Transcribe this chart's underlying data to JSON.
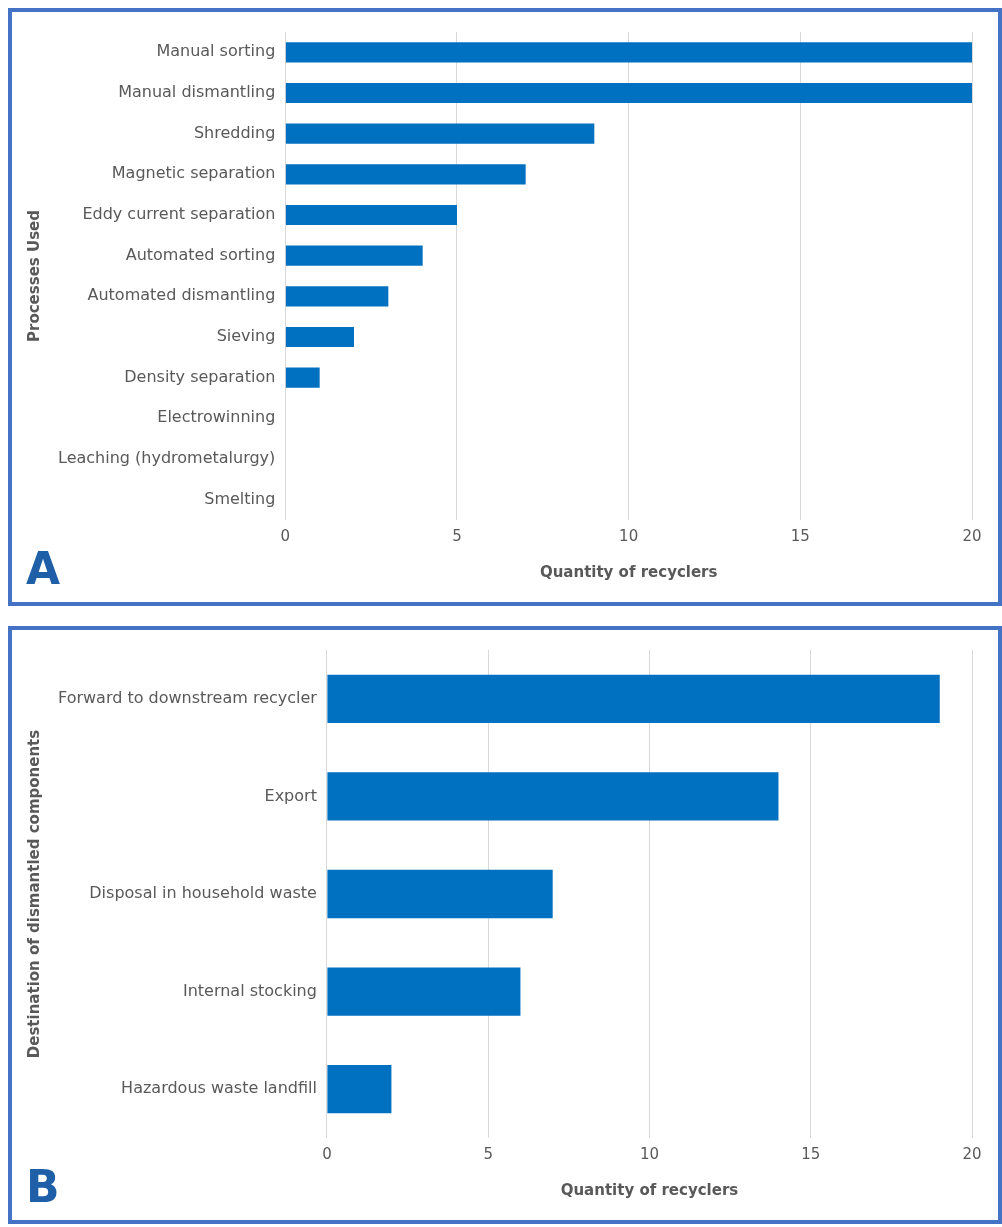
{
  "chart_data": [
    {
      "type": "bar",
      "orientation": "horizontal",
      "categories": [
        "Manual sorting",
        "Manual dismantling",
        "Shredding",
        "Magnetic separation",
        "Eddy current separation",
        "Automated sorting",
        "Automated dismantling",
        "Sieving",
        "Density separation",
        "Electrowinning",
        "Leaching (hydrometalurgy)",
        "Smelting"
      ],
      "values": [
        20,
        20,
        9,
        7,
        5,
        4,
        3,
        2,
        1,
        0,
        0,
        0
      ],
      "color": "#0070c0",
      "xlim": [
        0,
        20
      ],
      "xticks": [
        0,
        5,
        10,
        15,
        20
      ],
      "xlabel": "Quantity of recyclers",
      "ylabel": "Processes Used",
      "grid": "x",
      "annotations": [
        "A"
      ]
    },
    {
      "type": "bar",
      "orientation": "horizontal",
      "categories": [
        "Forward to downstream recycler",
        "Export",
        "Disposal in household waste",
        "Internal stocking",
        "Hazardous waste landfill"
      ],
      "values": [
        19,
        14,
        7,
        6,
        2
      ],
      "color": "#0070c0",
      "xlim": [
        0,
        20
      ],
      "xticks": [
        0,
        5,
        10,
        15,
        20
      ],
      "xlabel": "Quantity of recyclers",
      "ylabel": "Destination of dismantled components",
      "grid": "x",
      "annotations": [
        "B"
      ]
    }
  ]
}
